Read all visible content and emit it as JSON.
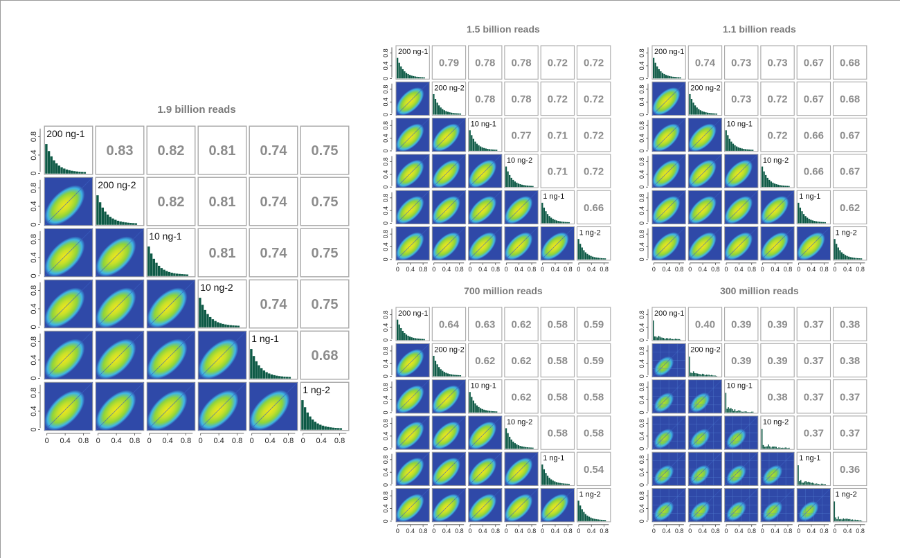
{
  "labels": [
    "200 ng-1",
    "200 ng-2",
    "10 ng-1",
    "10 ng-2",
    "1 ng-1",
    "1 ng-2"
  ],
  "axis_ticks": [
    "0",
    "0.4",
    "0.8"
  ],
  "colors": {
    "title": "#7a7a7a",
    "correlation_text": "#8c8c8c",
    "histogram": "#0e5a46",
    "cell_border": "#a8a8a8",
    "heatmap_background": "#2f49a8",
    "heatmap_mid": "#3fb6e6",
    "heatmap_core": "#8fd43a",
    "heatmap_peak": "#f2e81a"
  },
  "chart_data": [
    {
      "type": "heatmap",
      "title": "1.9 billion reads",
      "labels": [
        "200 ng-1",
        "200 ng-2",
        "10 ng-1",
        "10 ng-2",
        "1 ng-1",
        "1 ng-2"
      ],
      "correlations": [
        [
          0.83,
          0.82,
          0.81,
          0.74,
          0.75
        ],
        [
          0.82,
          0.81,
          0.74,
          0.75
        ],
        [
          0.81,
          0.74,
          0.75
        ],
        [
          0.74,
          0.75
        ],
        [
          0.68
        ]
      ],
      "axis_range": [
        0,
        1
      ],
      "ticks": [
        0,
        0.4,
        0.8
      ]
    },
    {
      "type": "heatmap",
      "title": "1.5 billion reads",
      "labels": [
        "200 ng-1",
        "200 ng-2",
        "10 ng-1",
        "10 ng-2",
        "1 ng-1",
        "1 ng-2"
      ],
      "correlations": [
        [
          0.79,
          0.78,
          0.78,
          0.72,
          0.72
        ],
        [
          0.78,
          0.78,
          0.72,
          0.72
        ],
        [
          0.77,
          0.71,
          0.72
        ],
        [
          0.71,
          0.72
        ],
        [
          0.66
        ]
      ],
      "axis_range": [
        0,
        1
      ],
      "ticks": [
        0,
        0.4,
        0.8
      ]
    },
    {
      "type": "heatmap",
      "title": "1.1 billion reads",
      "labels": [
        "200 ng-1",
        "200 ng-2",
        "10 ng-1",
        "10 ng-2",
        "1 ng-1",
        "1 ng-2"
      ],
      "correlations": [
        [
          0.74,
          0.73,
          0.73,
          0.67,
          0.68
        ],
        [
          0.73,
          0.72,
          0.67,
          0.68
        ],
        [
          0.72,
          0.66,
          0.67
        ],
        [
          0.66,
          0.67
        ],
        [
          0.62
        ]
      ],
      "axis_range": [
        0,
        1
      ],
      "ticks": [
        0,
        0.4,
        0.8
      ]
    },
    {
      "type": "heatmap",
      "title": "700 million reads",
      "labels": [
        "200 ng-1",
        "200 ng-2",
        "10 ng-1",
        "10 ng-2",
        "1 ng-1",
        "1 ng-2"
      ],
      "correlations": [
        [
          0.64,
          0.63,
          0.62,
          0.58,
          0.59
        ],
        [
          0.62,
          0.62,
          0.58,
          0.59
        ],
        [
          0.62,
          0.58,
          0.58
        ],
        [
          0.58,
          0.58
        ],
        [
          0.54
        ]
      ],
      "axis_range": [
        0,
        1
      ],
      "ticks": [
        0,
        0.4,
        0.8
      ]
    },
    {
      "type": "heatmap",
      "title": "300 million reads",
      "labels": [
        "200 ng-1",
        "200 ng-2",
        "10 ng-1",
        "10 ng-2",
        "1 ng-1",
        "1 ng-2"
      ],
      "correlations": [
        [
          0.4,
          0.39,
          0.39,
          0.37,
          0.38
        ],
        [
          0.39,
          0.39,
          0.37,
          0.38
        ],
        [
          0.38,
          0.37,
          0.37
        ],
        [
          0.37,
          0.37
        ],
        [
          0.36
        ]
      ],
      "axis_range": [
        0,
        1
      ],
      "ticks": [
        0,
        0.4,
        0.8
      ]
    }
  ]
}
